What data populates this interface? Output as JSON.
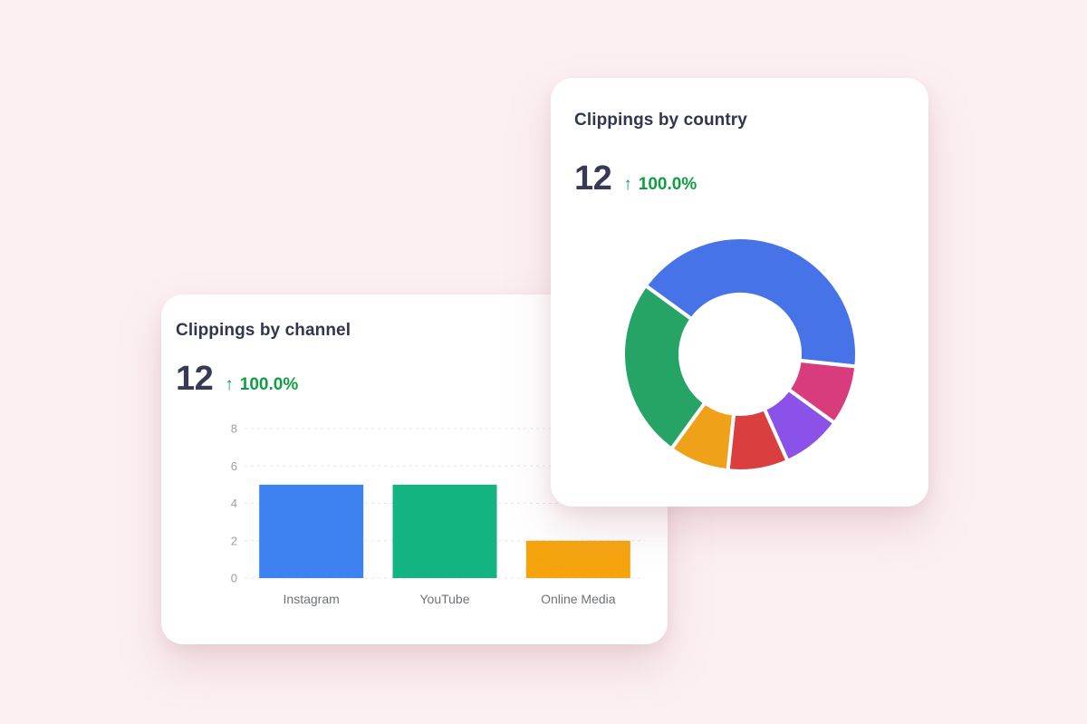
{
  "background_color": "#FCF0F3",
  "card_color": "#FFFFFF",
  "cards": {
    "channel": {
      "title": "Clippings by channel",
      "metric": {
        "value": "12",
        "delta_arrow": "↑",
        "delta": "100.0%",
        "delta_color": "#109D44"
      }
    },
    "country": {
      "title": "Clippings by country",
      "metric": {
        "value": "12",
        "delta_arrow": "↑",
        "delta": "100.0%",
        "delta_color": "#109D44"
      }
    }
  },
  "chart_data": [
    {
      "id": "clippings-by-channel",
      "type": "bar",
      "title": "Clippings by channel",
      "categories": [
        "Instagram",
        "YouTube",
        "Online Media"
      ],
      "values": [
        5,
        5,
        2
      ],
      "bar_colors": [
        "#3E82F1",
        "#13B382",
        "#F5A40D"
      ],
      "yticks": [
        0,
        2,
        4,
        6,
        8
      ],
      "ylim": [
        0,
        8
      ],
      "xlabel": "",
      "ylabel": "",
      "grid": "dashed horizontal gridlines",
      "legend": "none",
      "tick_color": "#9A9EA3",
      "category_color": "#6E7277",
      "gridline_color": "#E4E4E7"
    },
    {
      "id": "clippings-by-country",
      "type": "donut",
      "title": "Clippings by country",
      "total": 12,
      "rotation_deg": -54,
      "legend": "none",
      "slices": [
        {
          "value": 5,
          "color": "#4673E8"
        },
        {
          "value": 1,
          "color": "#D93C7C"
        },
        {
          "value": 1,
          "color": "#8B52EA"
        },
        {
          "value": 1,
          "color": "#DB3E3E"
        },
        {
          "value": 1,
          "color": "#EFA11A"
        },
        {
          "value": 3,
          "color": "#25A466"
        }
      ]
    }
  ]
}
